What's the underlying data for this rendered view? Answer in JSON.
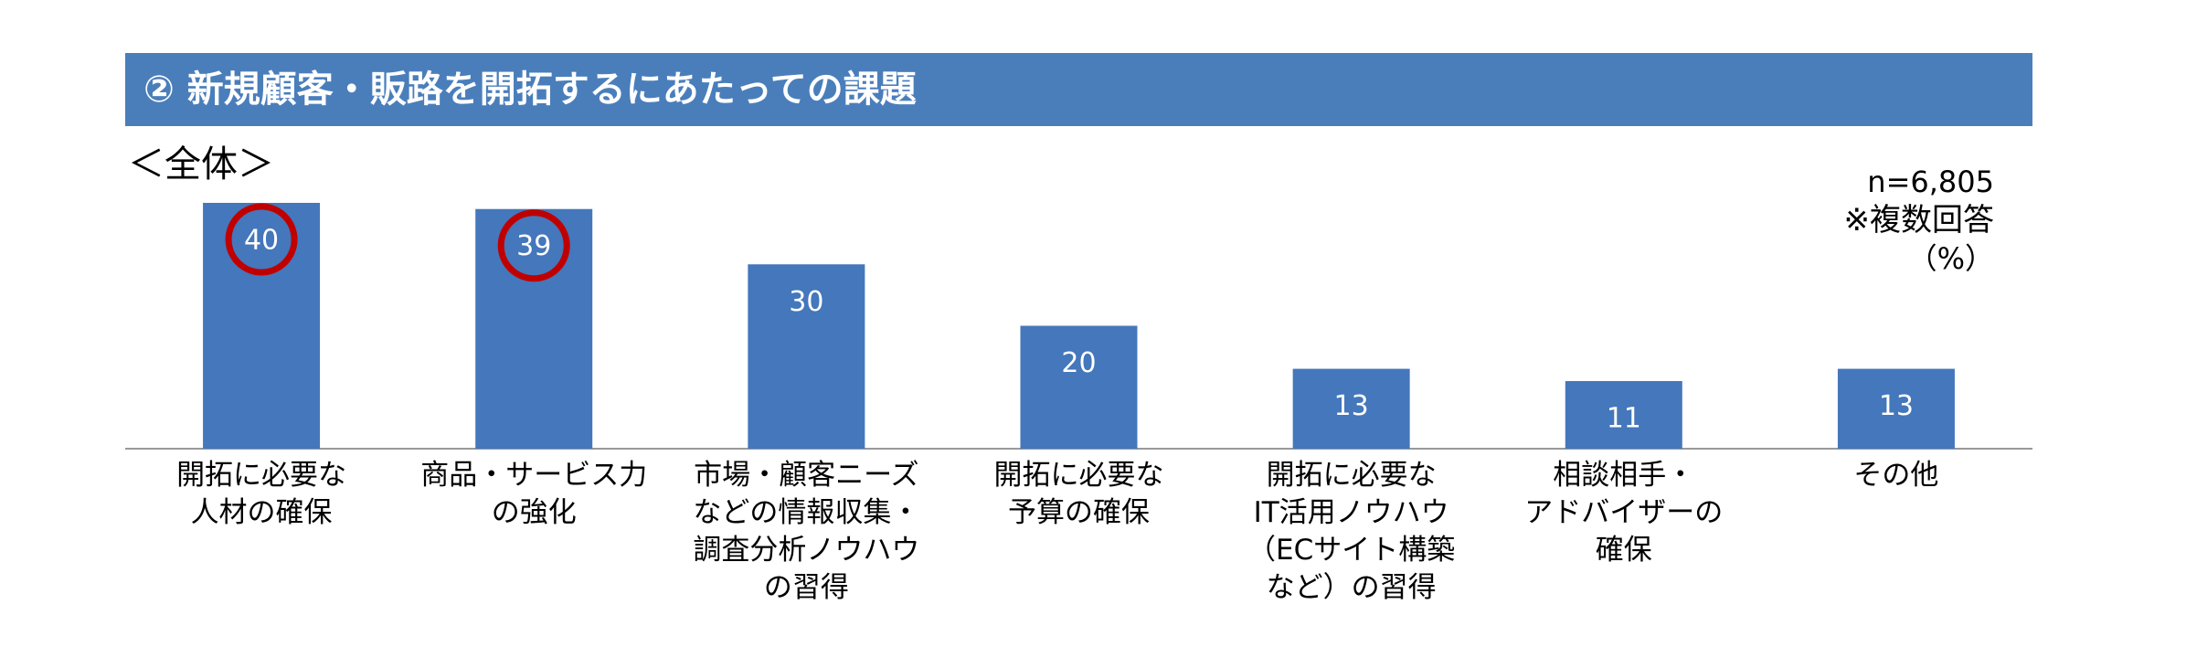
{
  "header": {
    "title": "② 新規顧客・販路を開拓するにあたっての課題"
  },
  "subtitle": "＜全体＞",
  "notes": {
    "n": "n=6,805",
    "multi": "※複数回答",
    "unit": "（%）"
  },
  "colors": {
    "bar": "#4477bb",
    "header": "#4a7ebb",
    "highlight": "#c00000",
    "axis": "#999999"
  },
  "chart_data": {
    "type": "bar",
    "categories": [
      "開拓に必要な\n人材の確保",
      "商品・サービス力\nの強化",
      "市場・顧客ニーズ\nなどの情報収集・\n調査分析ノウハウ\nの習得",
      "開拓に必要な\n予算の確保",
      "開拓に必要な\nIT活用ノウハウ\n（ECサイト構築\nなど）の習得",
      "相談相手・\nアドバイザーの\n確保",
      "その他"
    ],
    "values": [
      40,
      39,
      30,
      20,
      13,
      11,
      13
    ],
    "data_labels": [
      "40",
      "39",
      "30",
      "20",
      "13",
      "11",
      "13"
    ],
    "highlighted": [
      0,
      1
    ],
    "ylim": [
      0,
      40
    ],
    "grid": false,
    "title": "",
    "xlabel": "",
    "ylabel": ""
  }
}
